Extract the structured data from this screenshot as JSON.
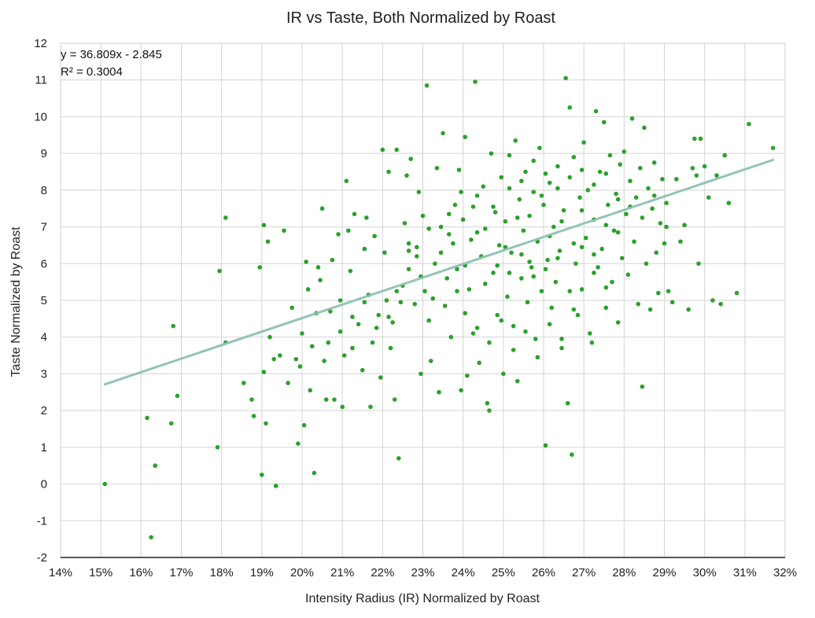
{
  "chart_data": {
    "type": "scatter",
    "title": "IR vs Taste, Both Normalized by Roast",
    "xlabel": "Intensity Radius (IR) Normalized by Roast",
    "ylabel": "Taste Normalized by Roast",
    "xlim": [
      0.14,
      0.32
    ],
    "ylim": [
      -2,
      12
    ],
    "x_ticks": [
      0.14,
      0.15,
      0.16,
      0.17,
      0.18,
      0.19,
      0.2,
      0.21,
      0.22,
      0.23,
      0.24,
      0.25,
      0.26,
      0.27,
      0.28,
      0.29,
      0.3,
      0.31,
      0.32
    ],
    "x_tick_labels": [
      "14%",
      "15%",
      "16%",
      "17%",
      "18%",
      "19%",
      "20%",
      "21%",
      "22%",
      "23%",
      "24%",
      "25%",
      "26%",
      "27%",
      "28%",
      "29%",
      "30%",
      "31%",
      "32%"
    ],
    "y_ticks": [
      -2,
      -1,
      0,
      1,
      2,
      3,
      4,
      5,
      6,
      7,
      8,
      9,
      10,
      11,
      12
    ],
    "y_tick_labels": [
      "-2",
      "-1",
      "0",
      "1",
      "2",
      "3",
      "4",
      "5",
      "6",
      "7",
      "8",
      "9",
      "10",
      "11",
      "12"
    ],
    "grid": true,
    "point_color": "#2ca02c",
    "trendline_color": "#8fc0b4",
    "trendline": {
      "slope": 36.809,
      "intercept": -2.845,
      "x_range": [
        0.151,
        0.317
      ],
      "equation_label": "y = 36.809x - 2.845",
      "r2_label": "R² = 0.3004"
    },
    "points": [
      [
        0.151,
        0.0
      ],
      [
        0.1615,
        1.8
      ],
      [
        0.1625,
        -1.45
      ],
      [
        0.1635,
        0.5
      ],
      [
        0.1675,
        1.65
      ],
      [
        0.168,
        4.3
      ],
      [
        0.169,
        2.4
      ],
      [
        0.179,
        1.0
      ],
      [
        0.1795,
        5.8
      ],
      [
        0.181,
        7.25
      ],
      [
        0.181,
        3.85
      ],
      [
        0.1855,
        2.75
      ],
      [
        0.1875,
        2.3
      ],
      [
        0.188,
        1.85
      ],
      [
        0.1895,
        5.9
      ],
      [
        0.19,
        0.25
      ],
      [
        0.1905,
        3.05
      ],
      [
        0.191,
        1.65
      ],
      [
        0.1915,
        6.6
      ],
      [
        0.1905,
        7.05
      ],
      [
        0.192,
        4.0
      ],
      [
        0.193,
        3.4
      ],
      [
        0.1945,
        3.5
      ],
      [
        0.1955,
        6.9
      ],
      [
        0.1965,
        2.75
      ],
      [
        0.1975,
        4.8
      ],
      [
        0.1985,
        3.4
      ],
      [
        0.1995,
        3.2
      ],
      [
        0.199,
        1.1
      ],
      [
        0.1935,
        -0.05
      ],
      [
        0.2,
        4.1
      ],
      [
        0.2005,
        1.6
      ],
      [
        0.201,
        6.05
      ],
      [
        0.2015,
        5.3
      ],
      [
        0.202,
        2.55
      ],
      [
        0.2025,
        3.75
      ],
      [
        0.203,
        0.3
      ],
      [
        0.204,
        5.9
      ],
      [
        0.2045,
        5.55
      ],
      [
        0.205,
        7.5
      ],
      [
        0.2055,
        3.35
      ],
      [
        0.206,
        2.3
      ],
      [
        0.207,
        4.7
      ],
      [
        0.2075,
        6.1
      ],
      [
        0.208,
        2.3
      ],
      [
        0.209,
        6.8
      ],
      [
        0.2095,
        5.0
      ],
      [
        0.21,
        2.1
      ],
      [
        0.2105,
        3.5
      ],
      [
        0.211,
        8.25
      ],
      [
        0.2115,
        6.9
      ],
      [
        0.212,
        5.8
      ],
      [
        0.2125,
        3.7
      ],
      [
        0.213,
        7.35
      ],
      [
        0.214,
        4.35
      ],
      [
        0.215,
        3.1
      ],
      [
        0.2155,
        6.4
      ],
      [
        0.216,
        7.25
      ],
      [
        0.2165,
        5.15
      ],
      [
        0.217,
        2.1
      ],
      [
        0.2175,
        3.85
      ],
      [
        0.218,
        6.75
      ],
      [
        0.219,
        4.6
      ],
      [
        0.2195,
        2.9
      ],
      [
        0.22,
        9.1
      ],
      [
        0.2205,
        6.3
      ],
      [
        0.221,
        5.0
      ],
      [
        0.2215,
        8.5
      ],
      [
        0.222,
        3.7
      ],
      [
        0.2225,
        4.4
      ],
      [
        0.223,
        2.3
      ],
      [
        0.2235,
        9.1
      ],
      [
        0.224,
        0.7
      ],
      [
        0.225,
        5.4
      ],
      [
        0.2255,
        7.1
      ],
      [
        0.226,
        8.4
      ],
      [
        0.2265,
        6.55
      ],
      [
        0.227,
        8.85
      ],
      [
        0.228,
        4.9
      ],
      [
        0.2285,
        6.2
      ],
      [
        0.229,
        7.95
      ],
      [
        0.2295,
        3.0
      ],
      [
        0.23,
        7.3
      ],
      [
        0.2305,
        5.25
      ],
      [
        0.231,
        10.85
      ],
      [
        0.2315,
        4.45
      ],
      [
        0.232,
        3.35
      ],
      [
        0.233,
        6.0
      ],
      [
        0.2335,
        8.6
      ],
      [
        0.234,
        2.5
      ],
      [
        0.2345,
        7.0
      ],
      [
        0.235,
        9.55
      ],
      [
        0.236,
        5.6
      ],
      [
        0.2365,
        6.8
      ],
      [
        0.237,
        4.0
      ],
      [
        0.238,
        7.6
      ],
      [
        0.2385,
        5.85
      ],
      [
        0.239,
        8.55
      ],
      [
        0.2395,
        2.55
      ],
      [
        0.24,
        7.2
      ],
      [
        0.2405,
        9.45
      ],
      [
        0.241,
        2.95
      ],
      [
        0.2415,
        5.3
      ],
      [
        0.242,
        6.65
      ],
      [
        0.2425,
        4.1
      ],
      [
        0.243,
        10.95
      ],
      [
        0.2435,
        7.85
      ],
      [
        0.244,
        3.3
      ],
      [
        0.2445,
        6.2
      ],
      [
        0.245,
        8.1
      ],
      [
        0.246,
        2.2
      ],
      [
        0.2465,
        2.0
      ],
      [
        0.247,
        9.0
      ],
      [
        0.2475,
        5.75
      ],
      [
        0.248,
        7.4
      ],
      [
        0.2485,
        4.6
      ],
      [
        0.249,
        6.5
      ],
      [
        0.2495,
        8.35
      ],
      [
        0.25,
        3.0
      ],
      [
        0.2505,
        7.15
      ],
      [
        0.251,
        5.1
      ],
      [
        0.2515,
        8.95
      ],
      [
        0.252,
        6.3
      ],
      [
        0.2525,
        4.3
      ],
      [
        0.253,
        9.35
      ],
      [
        0.2535,
        2.8
      ],
      [
        0.254,
        7.75
      ],
      [
        0.2545,
        5.6
      ],
      [
        0.255,
        6.9
      ],
      [
        0.2555,
        8.5
      ],
      [
        0.256,
        4.95
      ],
      [
        0.2565,
        7.3
      ],
      [
        0.257,
        5.9
      ],
      [
        0.2575,
        8.8
      ],
      [
        0.258,
        3.95
      ],
      [
        0.2585,
        6.6
      ],
      [
        0.259,
        9.15
      ],
      [
        0.2595,
        5.25
      ],
      [
        0.26,
        7.6
      ],
      [
        0.2605,
        1.05
      ],
      [
        0.261,
        6.1
      ],
      [
        0.2615,
        8.2
      ],
      [
        0.262,
        4.8
      ],
      [
        0.2625,
        7.0
      ],
      [
        0.263,
        5.5
      ],
      [
        0.2635,
        8.65
      ],
      [
        0.264,
        6.35
      ],
      [
        0.2645,
        3.7
      ],
      [
        0.265,
        7.45
      ],
      [
        0.2655,
        11.05
      ],
      [
        0.266,
        2.2
      ],
      [
        0.2665,
        10.25
      ],
      [
        0.267,
        0.8
      ],
      [
        0.2675,
        8.9
      ],
      [
        0.268,
        6.0
      ],
      [
        0.2685,
        4.6
      ],
      [
        0.269,
        7.8
      ],
      [
        0.2695,
        5.3
      ],
      [
        0.27,
        9.3
      ],
      [
        0.2705,
        6.7
      ],
      [
        0.271,
        8.0
      ],
      [
        0.2715,
        4.1
      ],
      [
        0.272,
        3.85
      ],
      [
        0.2725,
        7.2
      ],
      [
        0.273,
        10.15
      ],
      [
        0.2735,
        5.9
      ],
      [
        0.274,
        8.5
      ],
      [
        0.2745,
        6.4
      ],
      [
        0.275,
        9.85
      ],
      [
        0.2755,
        4.8
      ],
      [
        0.276,
        7.6
      ],
      [
        0.2765,
        8.95
      ],
      [
        0.277,
        5.5
      ],
      [
        0.2775,
        6.9
      ],
      [
        0.278,
        7.9
      ],
      [
        0.2785,
        4.4
      ],
      [
        0.279,
        8.7
      ],
      [
        0.2795,
        6.15
      ],
      [
        0.28,
        9.05
      ],
      [
        0.2805,
        7.35
      ],
      [
        0.281,
        5.7
      ],
      [
        0.2815,
        8.25
      ],
      [
        0.282,
        9.95
      ],
      [
        0.2825,
        6.6
      ],
      [
        0.283,
        7.8
      ],
      [
        0.2835,
        4.9
      ],
      [
        0.284,
        8.6
      ],
      [
        0.2845,
        2.65
      ],
      [
        0.285,
        9.7
      ],
      [
        0.2855,
        6.0
      ],
      [
        0.286,
        8.05
      ],
      [
        0.2865,
        4.75
      ],
      [
        0.287,
        7.5
      ],
      [
        0.2875,
        8.75
      ],
      [
        0.288,
        6.3
      ],
      [
        0.2885,
        5.2
      ],
      [
        0.289,
        7.1
      ],
      [
        0.2895,
        8.3
      ],
      [
        0.29,
        6.55
      ],
      [
        0.2905,
        7.0
      ],
      [
        0.291,
        5.25
      ],
      [
        0.292,
        4.95
      ],
      [
        0.293,
        8.3
      ],
      [
        0.294,
        6.6
      ],
      [
        0.295,
        7.05
      ],
      [
        0.296,
        4.75
      ],
      [
        0.297,
        8.6
      ],
      [
        0.2975,
        9.4
      ],
      [
        0.298,
        8.4
      ],
      [
        0.2985,
        6.0
      ],
      [
        0.299,
        9.4
      ],
      [
        0.3,
        8.65
      ],
      [
        0.301,
        7.8
      ],
      [
        0.302,
        5.0
      ],
      [
        0.303,
        8.4
      ],
      [
        0.304,
        4.9
      ],
      [
        0.305,
        8.95
      ],
      [
        0.306,
        7.65
      ],
      [
        0.308,
        5.2
      ],
      [
        0.311,
        9.8
      ],
      [
        0.317,
        9.15
      ],
      [
        0.2455,
        6.95
      ],
      [
        0.2475,
        7.55
      ],
      [
        0.2505,
        6.45
      ],
      [
        0.2535,
        7.25
      ],
      [
        0.2565,
        6.05
      ],
      [
        0.2595,
        7.85
      ],
      [
        0.2615,
        6.75
      ],
      [
        0.2645,
        7.15
      ],
      [
        0.2675,
        6.55
      ],
      [
        0.2695,
        7.45
      ],
      [
        0.2725,
        6.25
      ],
      [
        0.2755,
        7.05
      ],
      [
        0.2785,
        6.85
      ],
      [
        0.2455,
        5.45
      ],
      [
        0.2485,
        5.95
      ],
      [
        0.2515,
        5.75
      ],
      [
        0.2545,
        6.25
      ],
      [
        0.2575,
        5.65
      ],
      [
        0.2605,
        5.85
      ],
      [
        0.2635,
        6.15
      ],
      [
        0.2665,
        5.25
      ],
      [
        0.2695,
        6.45
      ],
      [
        0.2725,
        5.75
      ],
      [
        0.2755,
        5.35
      ],
      [
        0.2345,
        6.3
      ],
      [
        0.2375,
        6.55
      ],
      [
        0.2405,
        5.95
      ],
      [
        0.2435,
        6.85
      ],
      [
        0.2365,
        7.35
      ],
      [
        0.2395,
        7.95
      ],
      [
        0.2425,
        7.55
      ],
      [
        0.2315,
        6.95
      ],
      [
        0.2285,
        6.45
      ],
      [
        0.2265,
        5.85
      ],
      [
        0.2245,
        4.95
      ],
      [
        0.2215,
        4.55
      ],
      [
        0.2185,
        4.25
      ],
      [
        0.2155,
        4.95
      ],
      [
        0.2125,
        4.55
      ],
      [
        0.2095,
        4.15
      ],
      [
        0.2065,
        3.85
      ],
      [
        0.2035,
        4.65
      ],
      [
        0.2515,
        8.05
      ],
      [
        0.2545,
        8.25
      ],
      [
        0.2575,
        7.95
      ],
      [
        0.2605,
        8.45
      ],
      [
        0.2635,
        8.05
      ],
      [
        0.2665,
        8.35
      ],
      [
        0.2695,
        8.55
      ],
      [
        0.2725,
        8.15
      ],
      [
        0.2755,
        8.45
      ],
      [
        0.2785,
        7.75
      ],
      [
        0.2815,
        7.55
      ],
      [
        0.2845,
        7.25
      ],
      [
        0.2875,
        7.85
      ],
      [
        0.2905,
        7.65
      ],
      [
        0.2405,
        4.65
      ],
      [
        0.2435,
        4.25
      ],
      [
        0.2465,
        3.85
      ],
      [
        0.2495,
        4.45
      ],
      [
        0.2525,
        3.65
      ],
      [
        0.2555,
        4.15
      ],
      [
        0.2585,
        3.45
      ],
      [
        0.2615,
        4.35
      ],
      [
        0.2645,
        3.95
      ],
      [
        0.2675,
        4.75
      ],
      [
        0.2325,
        5.05
      ],
      [
        0.2355,
        4.85
      ],
      [
        0.2385,
        5.25
      ],
      [
        0.2295,
        5.65
      ],
      [
        0.2265,
        6.35
      ],
      [
        0.2235,
        5.25
      ]
    ]
  }
}
